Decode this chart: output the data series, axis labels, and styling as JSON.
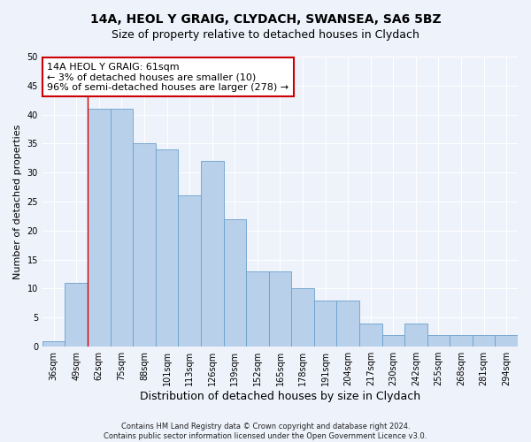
{
  "title1": "14A, HEOL Y GRAIG, CLYDACH, SWANSEA, SA6 5BZ",
  "title2": "Size of property relative to detached houses in Clydach",
  "xlabel": "Distribution of detached houses by size in Clydach",
  "ylabel": "Number of detached properties",
  "categories": [
    "36sqm",
    "49sqm",
    "62sqm",
    "75sqm",
    "88sqm",
    "101sqm",
    "113sqm",
    "126sqm",
    "139sqm",
    "152sqm",
    "165sqm",
    "178sqm",
    "191sqm",
    "204sqm",
    "217sqm",
    "230sqm",
    "242sqm",
    "255sqm",
    "268sqm",
    "281sqm",
    "294sqm"
  ],
  "values": [
    1,
    11,
    41,
    41,
    35,
    34,
    26,
    32,
    22,
    13,
    13,
    10,
    8,
    8,
    4,
    2,
    4,
    2,
    2,
    2,
    2
  ],
  "bar_color": "#b8d0ea",
  "bar_edge_color": "#6aa0cc",
  "highlight_line_index": 2,
  "annotation_title": "14A HEOL Y GRAIG: 61sqm",
  "annotation_line1": "← 3% of detached houses are smaller (10)",
  "annotation_line2": "96% of semi-detached houses are larger (278) →",
  "annotation_box_facecolor": "#ffffff",
  "annotation_box_edgecolor": "#cc0000",
  "highlight_line_color": "#cc0000",
  "ylim": [
    0,
    50
  ],
  "yticks": [
    0,
    5,
    10,
    15,
    20,
    25,
    30,
    35,
    40,
    45,
    50
  ],
  "footnote1": "Contains HM Land Registry data © Crown copyright and database right 2024.",
  "footnote2": "Contains public sector information licensed under the Open Government Licence v3.0.",
  "bg_color": "#eef2fb",
  "grid_color": "#ffffff",
  "title_fontsize": 10,
  "subtitle_fontsize": 9,
  "annotation_fontsize": 8,
  "xlabel_fontsize": 9,
  "ylabel_fontsize": 8,
  "footnote_fontsize": 6,
  "tick_fontsize": 7
}
